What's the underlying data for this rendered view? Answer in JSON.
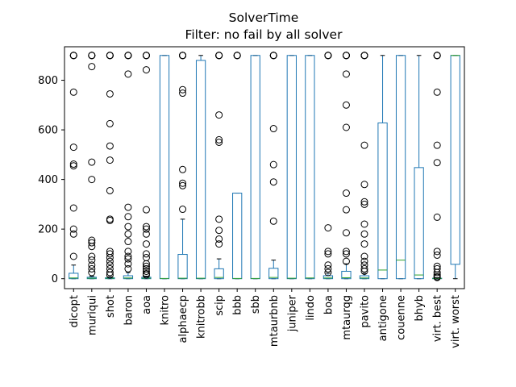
{
  "chart_data": {
    "type": "box",
    "title": "SolverTime",
    "subtitle": "Filter: no fail by all solver",
    "xlabel": "",
    "ylabel": "",
    "ylim": [
      -40,
      935
    ],
    "yticks": [
      0,
      200,
      400,
      600,
      800
    ],
    "grid": false,
    "colors": {
      "box": "#1f77b4",
      "median": "#2ca02c",
      "flier": "#000000",
      "axis": "#000000"
    },
    "categories": [
      "dicopt",
      "muriqui",
      "shot",
      "baron",
      "aoa",
      "knitro",
      "alphaecp",
      "knitrobb",
      "scip",
      "bbb",
      "sbb",
      "mtaurbnb",
      "juniper",
      "lindo",
      "boa",
      "mtaurqg",
      "pavito",
      "antigone",
      "couenne",
      "bhyb",
      "virt. best",
      "virt. worst"
    ],
    "boxes": [
      {
        "q1": 0,
        "median": 3,
        "q3": 22,
        "whislo": 0,
        "whishi": 55,
        "fliers": [
          900,
          900,
          900,
          900,
          752,
          530,
          462,
          455,
          285,
          200,
          180,
          90
        ]
      },
      {
        "q1": 0,
        "median": 2,
        "q3": 6,
        "whislo": 0,
        "whishi": 10,
        "fliers": [
          900,
          900,
          900,
          900,
          855,
          470,
          400,
          155,
          145,
          130,
          90,
          75,
          55,
          40,
          25
        ]
      },
      {
        "q1": 0,
        "median": 2,
        "q3": 4,
        "whislo": 0,
        "whishi": 8,
        "fliers": [
          900,
          900,
          900,
          900,
          745,
          625,
          535,
          478,
          355,
          240,
          235,
          110,
          100,
          85,
          70,
          55,
          40,
          25,
          15
        ]
      },
      {
        "q1": 0,
        "median": 3,
        "q3": 12,
        "whislo": 0,
        "whishi": 25,
        "fliers": [
          900,
          900,
          900,
          900,
          825,
          288,
          250,
          210,
          180,
          150,
          110,
          90,
          80,
          60,
          40
        ]
      },
      {
        "q1": 0,
        "median": 2,
        "q3": 6,
        "whislo": 0,
        "whishi": 10,
        "fliers": [
          900,
          900,
          900,
          900,
          842,
          278,
          210,
          200,
          180,
          140,
          100,
          85,
          60,
          50,
          40,
          30,
          20,
          15
        ]
      },
      {
        "q1": 0,
        "median": 1,
        "q3": 900,
        "whislo": 0,
        "whishi": 900,
        "fliers": []
      },
      {
        "q1": 0,
        "median": 2,
        "q3": 98,
        "whislo": 0,
        "whishi": 240,
        "fliers": [
          900,
          900,
          900,
          900,
          762,
          748,
          440,
          385,
          375,
          280
        ]
      },
      {
        "q1": 0,
        "median": 2,
        "q3": 880,
        "whislo": 0,
        "whishi": 900,
        "fliers": []
      },
      {
        "q1": 0,
        "median": 5,
        "q3": 40,
        "whislo": 0,
        "whishi": 80,
        "fliers": [
          900,
          900,
          900,
          900,
          660,
          560,
          550,
          240,
          195,
          160,
          140
        ]
      },
      {
        "q1": 0,
        "median": 1,
        "q3": 345,
        "whislo": 0,
        "whishi": 345,
        "fliers": [
          900,
          900,
          900,
          900
        ]
      },
      {
        "q1": 0,
        "median": 1,
        "q3": 900,
        "whislo": 0,
        "whishi": 900,
        "fliers": []
      },
      {
        "q1": 0,
        "median": 5,
        "q3": 42,
        "whislo": 0,
        "whishi": 75,
        "fliers": [
          900,
          900,
          900,
          900,
          605,
          460,
          390,
          232
        ]
      },
      {
        "q1": 0,
        "median": 2,
        "q3": 900,
        "whislo": 0,
        "whishi": 900,
        "fliers": []
      },
      {
        "q1": 0,
        "median": 3,
        "q3": 900,
        "whislo": 0,
        "whishi": 900,
        "fliers": []
      },
      {
        "q1": 0,
        "median": 3,
        "q3": 12,
        "whislo": 0,
        "whishi": 22,
        "fliers": [
          900,
          900,
          900,
          900,
          205,
          110,
          100,
          55,
          40,
          25
        ]
      },
      {
        "q1": 0,
        "median": 4,
        "q3": 30,
        "whislo": 0,
        "whishi": 60,
        "fliers": [
          900,
          900,
          900,
          900,
          825,
          700,
          610,
          345,
          278,
          185,
          110,
          100,
          70
        ]
      },
      {
        "q1": 0,
        "median": 3,
        "q3": 12,
        "whislo": 0,
        "whishi": 22,
        "fliers": [
          900,
          900,
          900,
          900,
          538,
          380,
          310,
          300,
          220,
          180,
          140,
          90,
          70,
          55,
          40,
          30
        ]
      },
      {
        "q1": 0,
        "median": 35,
        "q3": 628,
        "whislo": 0,
        "whishi": 900,
        "fliers": []
      },
      {
        "q1": 0,
        "median": 75,
        "q3": 900,
        "whislo": 0,
        "whishi": 900,
        "fliers": []
      },
      {
        "q1": 0,
        "median": 15,
        "q3": 448,
        "whislo": 0,
        "whishi": 900,
        "fliers": []
      },
      {
        "q1": 0,
        "median": 1,
        "q3": 2,
        "whislo": 0,
        "whishi": 4,
        "fliers": [
          900,
          900,
          900,
          900,
          752,
          538,
          468,
          248,
          110,
          95,
          50,
          40,
          25,
          15,
          8,
          5
        ]
      },
      {
        "q1": 58,
        "median": 900,
        "q3": 900,
        "whislo": 0,
        "whishi": 900,
        "fliers": []
      }
    ]
  }
}
